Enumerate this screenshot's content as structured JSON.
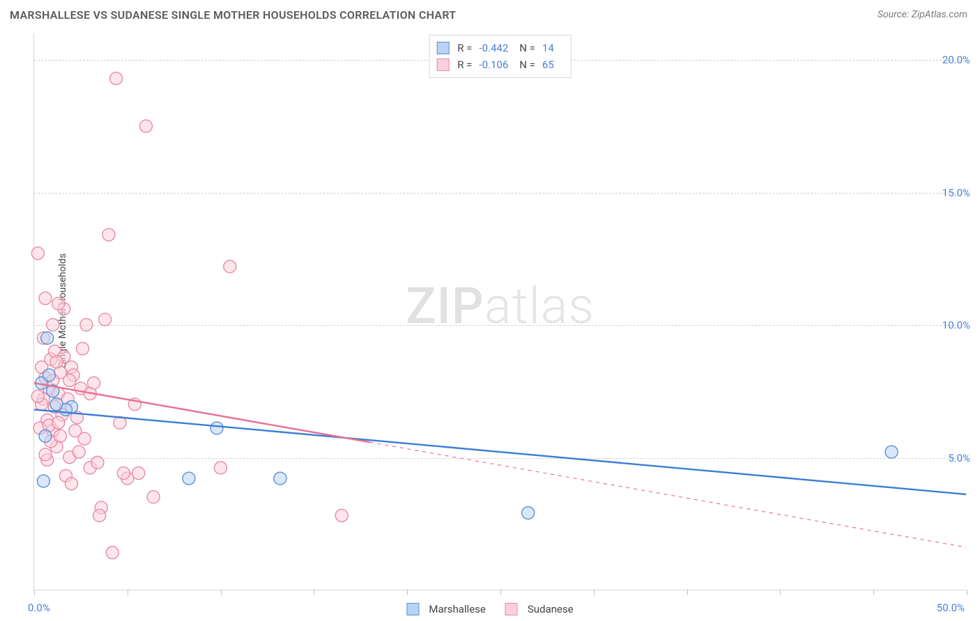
{
  "header": {
    "title": "MARSHALLESE VS SUDANESE SINGLE MOTHER HOUSEHOLDS CORRELATION CHART",
    "source_label": "Source:",
    "source_value": "ZipAtlas.com"
  },
  "axes": {
    "y_label": "Single Mother Households",
    "x_min": 0,
    "x_max": 50,
    "y_min": 0,
    "y_max": 21,
    "x_ticks": [
      0,
      5,
      10,
      15,
      20,
      25,
      30,
      35,
      40,
      45,
      50
    ],
    "x_tick_labels": {
      "left": "0.0%",
      "right": "50.0%"
    },
    "y_gridlines": [
      5,
      10,
      15,
      20
    ],
    "y_tick_labels": [
      {
        "value": 5,
        "label": "5.0%"
      },
      {
        "value": 10,
        "label": "10.0%"
      },
      {
        "value": 15,
        "label": "15.0%"
      },
      {
        "value": 20,
        "label": "20.0%"
      }
    ]
  },
  "colors": {
    "series_a_fill": "#b9d3f4",
    "series_a_stroke": "#5b8fd6",
    "series_a_line": "#3b7dd8",
    "series_b_fill": "#fbd0dc",
    "series_b_stroke": "#e88ba5",
    "series_b_line": "#e86f92",
    "grid": "#d0d0d0",
    "axis": "#d6d6d6",
    "tick_text": "#4a7fd8",
    "title_text": "#5a5a5a",
    "source_text": "#7a7a7a",
    "watermark": "#d0d0d0"
  },
  "series": {
    "a": {
      "name": "Marshallese",
      "points": [
        [
          1.0,
          7.5
        ],
        [
          0.7,
          9.5
        ],
        [
          2.0,
          6.9
        ],
        [
          0.6,
          5.8
        ],
        [
          1.7,
          6.8
        ],
        [
          0.5,
          4.1
        ],
        [
          0.4,
          7.8
        ],
        [
          8.3,
          4.2
        ],
        [
          9.8,
          6.1
        ],
        [
          13.2,
          4.2
        ],
        [
          26.5,
          2.9
        ],
        [
          46.0,
          5.2
        ],
        [
          0.8,
          8.1
        ],
        [
          1.2,
          7.0
        ]
      ],
      "trend": {
        "x1": 0,
        "y1": 6.8,
        "x2": 50,
        "y2": 3.6,
        "dash": false
      }
    },
    "b": {
      "name": "Sudanese",
      "points": [
        [
          0.5,
          7.2
        ],
        [
          0.6,
          8.0
        ],
        [
          0.7,
          6.4
        ],
        [
          0.8,
          7.6
        ],
        [
          0.9,
          8.7
        ],
        [
          1.0,
          6.0
        ],
        [
          1.1,
          9.0
        ],
        [
          1.2,
          5.4
        ],
        [
          1.3,
          7.4
        ],
        [
          1.4,
          8.2
        ],
        [
          1.5,
          6.6
        ],
        [
          1.6,
          10.6
        ],
        [
          0.4,
          7.0
        ],
        [
          0.3,
          6.1
        ],
        [
          0.2,
          7.3
        ],
        [
          1.8,
          7.2
        ],
        [
          1.9,
          5.0
        ],
        [
          2.0,
          8.4
        ],
        [
          2.2,
          6.0
        ],
        [
          2.4,
          5.2
        ],
        [
          2.5,
          7.6
        ],
        [
          2.8,
          10.0
        ],
        [
          3.0,
          4.6
        ],
        [
          3.2,
          7.8
        ],
        [
          3.4,
          4.8
        ],
        [
          3.6,
          3.1
        ],
        [
          3.8,
          10.2
        ],
        [
          4.0,
          13.4
        ],
        [
          4.2,
          1.4
        ],
        [
          4.4,
          19.3
        ],
        [
          5.0,
          4.2
        ],
        [
          5.6,
          4.4
        ],
        [
          6.0,
          17.5
        ],
        [
          6.4,
          3.5
        ],
        [
          2.6,
          9.1
        ],
        [
          1.7,
          4.3
        ],
        [
          4.6,
          6.3
        ],
        [
          10.5,
          12.2
        ],
        [
          10.0,
          4.6
        ],
        [
          3.5,
          2.8
        ],
        [
          0.2,
          12.7
        ],
        [
          1.0,
          7.9
        ],
        [
          1.3,
          10.8
        ],
        [
          0.5,
          9.5
        ],
        [
          0.7,
          4.9
        ],
        [
          2.1,
          8.1
        ],
        [
          0.9,
          5.6
        ],
        [
          1.1,
          6.9
        ],
        [
          1.4,
          5.8
        ],
        [
          1.6,
          8.8
        ],
        [
          2.3,
          6.5
        ],
        [
          0.6,
          11.0
        ],
        [
          2.0,
          4.0
        ],
        [
          3.0,
          7.4
        ],
        [
          1.2,
          8.6
        ],
        [
          0.8,
          6.2
        ],
        [
          16.5,
          2.8
        ],
        [
          4.8,
          4.4
        ],
        [
          5.4,
          7.0
        ],
        [
          1.9,
          7.9
        ],
        [
          2.7,
          5.7
        ],
        [
          0.4,
          8.4
        ],
        [
          1.0,
          10.0
        ],
        [
          0.6,
          5.1
        ],
        [
          1.3,
          6.3
        ]
      ],
      "trend": {
        "x1": 0,
        "y1": 7.8,
        "x2": 50,
        "y2": 1.6,
        "dash_after_x": 18
      }
    }
  },
  "stats_box": {
    "rows": [
      {
        "series": "a",
        "r_label": "R =",
        "r_value": "-0.442",
        "n_label": "N =",
        "n_value": "14"
      },
      {
        "series": "b",
        "r_label": "R =",
        "r_value": "-0.106",
        "n_label": "N =",
        "n_value": "65"
      }
    ]
  },
  "bottom_legend": {
    "items": [
      {
        "series": "a",
        "label": "Marshallese"
      },
      {
        "series": "b",
        "label": "Sudanese"
      }
    ]
  },
  "watermark": {
    "bold": "ZIP",
    "light": "atlas"
  },
  "styling": {
    "point_radius": 9,
    "point_stroke_width": 1.4,
    "point_fill_opacity": 0.55,
    "trend_line_width": 2.4,
    "title_fontsize": 16,
    "label_fontsize": 14,
    "tick_fontsize": 15,
    "watermark_fontsize": 72
  }
}
